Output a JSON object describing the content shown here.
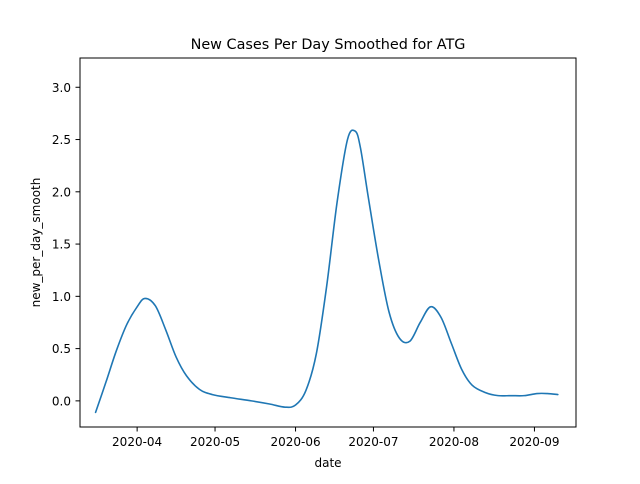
{
  "chart_data": {
    "type": "line",
    "title": "New Cases Per Day Smoothed for ATG",
    "xlabel": "date",
    "ylabel": "new_per_day_smooth",
    "x_ticks": [
      "2020-04-01",
      "2020-05-01",
      "2020-06-01",
      "2020-07-01",
      "2020-08-01",
      "2020-09-01"
    ],
    "x_tick_labels": [
      "2020-04",
      "2020-05",
      "2020-06",
      "2020-07",
      "2020-08",
      "2020-09"
    ],
    "y_ticks": [
      0.0,
      0.5,
      1.0,
      1.5,
      2.0,
      2.5,
      3.0
    ],
    "y_tick_labels": [
      "0.0",
      "0.5",
      "1.0",
      "1.5",
      "2.0",
      "2.5",
      "3.0"
    ],
    "xlim": [
      "2020-03-10",
      "2020-09-17"
    ],
    "ylim": [
      -0.25,
      3.28
    ],
    "grid": false,
    "legend": false,
    "series": [
      {
        "color": "#1f77b4",
        "x": [
          "2020-03-16",
          "2020-03-20",
          "2020-03-24",
          "2020-03-28",
          "2020-04-01",
          "2020-04-04",
          "2020-04-08",
          "2020-04-12",
          "2020-04-16",
          "2020-04-20",
          "2020-04-25",
          "2020-04-30",
          "2020-05-07",
          "2020-05-15",
          "2020-05-22",
          "2020-05-28",
          "2020-06-01",
          "2020-06-05",
          "2020-06-09",
          "2020-06-13",
          "2020-06-17",
          "2020-06-21",
          "2020-06-24",
          "2020-06-26",
          "2020-06-29",
          "2020-07-03",
          "2020-07-07",
          "2020-07-11",
          "2020-07-15",
          "2020-07-19",
          "2020-07-23",
          "2020-07-27",
          "2020-07-31",
          "2020-08-04",
          "2020-08-08",
          "2020-08-13",
          "2020-08-18",
          "2020-08-23",
          "2020-08-28",
          "2020-09-02",
          "2020-09-06",
          "2020-09-10"
        ],
        "y": [
          -0.11,
          0.18,
          0.48,
          0.73,
          0.9,
          0.98,
          0.91,
          0.68,
          0.42,
          0.24,
          0.11,
          0.06,
          0.03,
          0.0,
          -0.03,
          -0.06,
          -0.04,
          0.1,
          0.45,
          1.1,
          1.9,
          2.5,
          2.58,
          2.42,
          1.95,
          1.35,
          0.85,
          0.6,
          0.57,
          0.75,
          0.9,
          0.8,
          0.55,
          0.3,
          0.15,
          0.08,
          0.05,
          0.05,
          0.05,
          0.07,
          0.07,
          0.06
        ]
      }
    ]
  }
}
